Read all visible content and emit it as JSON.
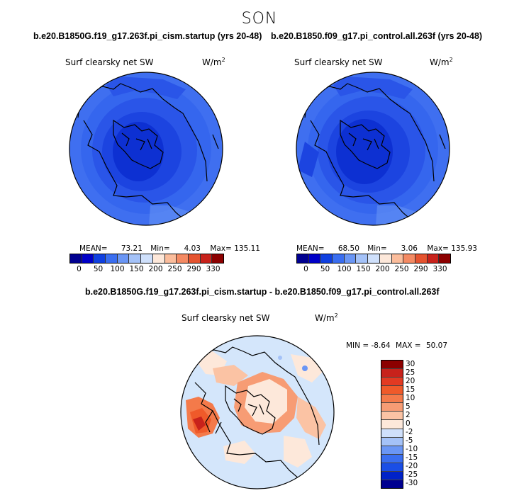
{
  "figure": {
    "season": "SON"
  },
  "panels": {
    "left": {
      "case": "b.e20.B1850G.f19_g17.263f.pi_cism.startup (yrs 20-48)",
      "field": "Surf clearsky net SW",
      "units_base": "W/m",
      "units_exp": "2",
      "mean_label": "MEAN=",
      "mean": "73.21",
      "min_label": "Min=",
      "min": "4.03",
      "max_label": "Max=",
      "max": "135.11"
    },
    "right": {
      "case": "b.e20.B1850.f09_g17.pi_control.all.263f (yrs 20-48)",
      "field": "Surf clearsky net SW",
      "units_base": "W/m",
      "units_exp": "2",
      "mean_label": "MEAN=",
      "mean": "68.50",
      "min_label": "Min=",
      "min": "3.06",
      "max_label": "Max=",
      "max": "135.93"
    },
    "diff": {
      "case": "b.e20.B1850G.f19_g17.263f.pi_cism.startup - b.e20.B1850.f09_g17.pi_control.all.263f",
      "field": "Surf clearsky net SW",
      "units_base": "W/m",
      "units_exp": "2",
      "min_label": "MIN =",
      "min": "-8.64",
      "max_label": "MAX =",
      "max": "50.07"
    }
  },
  "colorbars": {
    "abs_ticks": [
      "0",
      "50",
      "100",
      "150",
      "200",
      "250",
      "290",
      "330"
    ],
    "abs_colors": [
      "#000090",
      "#0000c8",
      "#1040e0",
      "#3a6ef0",
      "#6a96f5",
      "#a4c2f8",
      "#cfe0fb",
      "#fde8da",
      "#fbbd9c",
      "#f48a63",
      "#e5532f",
      "#c8221b",
      "#8c0000"
    ],
    "diff_labels": [
      "30",
      "25",
      "20",
      "15",
      "10",
      "5",
      "2",
      "0",
      "-2",
      "-5",
      "-10",
      "-15",
      "-20",
      "-25",
      "-30"
    ],
    "diff_colors": [
      "#8c0000",
      "#c8221b",
      "#e23a22",
      "#ef5a2a",
      "#f47a4a",
      "#f79c74",
      "#fbc3a4",
      "#fde8da",
      "#cfe0fb",
      "#a4c2f8",
      "#6a96f5",
      "#3a6ef0",
      "#1a4ee6",
      "#0022c8",
      "#000090"
    ]
  },
  "chart_data": [
    {
      "type": "map",
      "title": "Surf clearsky net SW",
      "case": "b.e20.B1850G.f19_g17.263f.pi_cism.startup (yrs 20-48)",
      "units": "W/m2",
      "mean": 73.21,
      "min": 4.03,
      "max": 135.11,
      "levels": [
        0,
        50,
        100,
        150,
        200,
        250,
        290,
        330
      ]
    },
    {
      "type": "map",
      "title": "Surf clearsky net SW",
      "case": "b.e20.B1850.f09_g17.pi_control.all.263f (yrs 20-48)",
      "units": "W/m2",
      "mean": 68.5,
      "min": 3.06,
      "max": 135.93,
      "levels": [
        0,
        50,
        100,
        150,
        200,
        250,
        290,
        330
      ]
    },
    {
      "type": "map",
      "title": "Surf clearsky net SW",
      "case": "difference",
      "units": "W/m2",
      "min": -8.64,
      "max": 50.07,
      "levels": [
        -30,
        -25,
        -20,
        -15,
        -10,
        -5,
        -2,
        0,
        2,
        5,
        10,
        15,
        20,
        25,
        30
      ]
    }
  ]
}
